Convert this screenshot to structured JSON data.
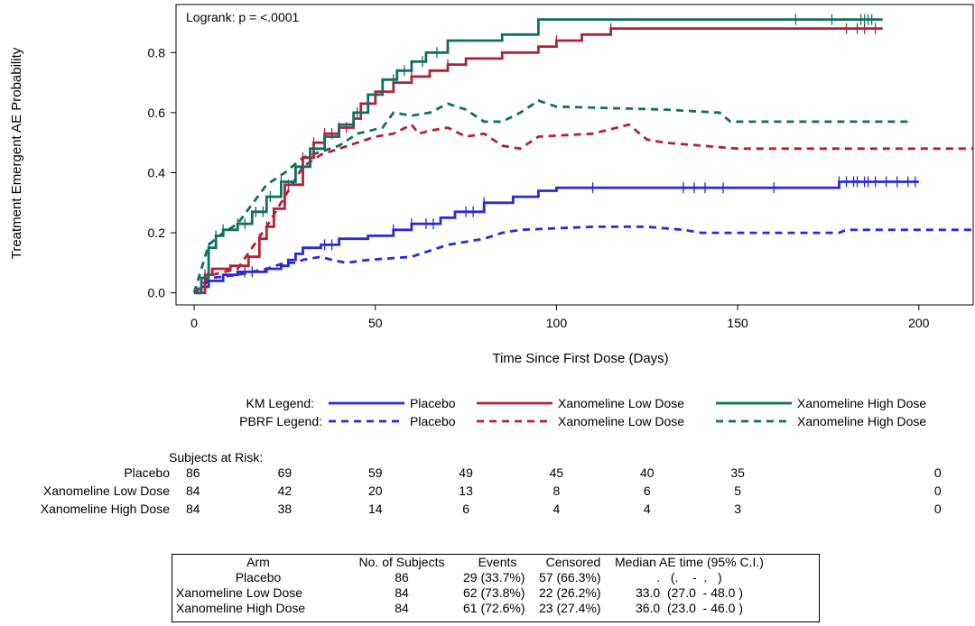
{
  "chart_data": {
    "type": "line",
    "annotation": "Logrank: p = <.0001",
    "xlabel": "Time Since First Dose (Days)",
    "ylabel": "Treatment Emergent AE Probability",
    "xlim": [
      -5,
      215
    ],
    "ylim": [
      -0.04,
      0.96
    ],
    "xticks": [
      0,
      50,
      100,
      150,
      200
    ],
    "yticks": [
      0.0,
      0.2,
      0.4,
      0.6,
      0.8
    ],
    "ytick_labels": [
      "0.0",
      "0.2",
      "0.4",
      "0.6",
      "0.8"
    ],
    "grid": false,
    "colors": {
      "placebo": "#2a2ad8",
      "low": "#b22237",
      "high": "#0f6f63"
    },
    "legend": {
      "km_label": "KM Legend:",
      "pbrf_label": "PBRF Legend:",
      "km_entries": [
        "Placebo",
        "Xanomeline Low Dose",
        "Xanomeline High Dose"
      ],
      "pbrf_entries": [
        "Placebo",
        "Xanomeline Low Dose",
        "Xanomeline High Dose"
      ]
    },
    "km_series": [
      {
        "name": "Placebo",
        "color_key": "placebo",
        "points": [
          [
            0,
            0
          ],
          [
            2,
            0.02
          ],
          [
            4,
            0.04
          ],
          [
            8,
            0.06
          ],
          [
            12,
            0.07
          ],
          [
            20,
            0.08
          ],
          [
            24,
            0.09
          ],
          [
            26,
            0.11
          ],
          [
            28,
            0.13
          ],
          [
            30,
            0.15
          ],
          [
            35,
            0.16
          ],
          [
            40,
            0.18
          ],
          [
            48,
            0.19
          ],
          [
            55,
            0.21
          ],
          [
            60,
            0.23
          ],
          [
            68,
            0.25
          ],
          [
            72,
            0.27
          ],
          [
            80,
            0.3
          ],
          [
            88,
            0.32
          ],
          [
            95,
            0.34
          ],
          [
            100,
            0.35
          ],
          [
            175,
            0.35
          ],
          [
            178,
            0.37
          ],
          [
            200,
            0.37
          ]
        ],
        "censor_x": [
          14,
          16,
          36,
          38,
          55,
          60,
          64,
          66,
          75,
          77,
          80,
          110,
          135,
          138,
          141,
          146,
          160,
          178,
          180,
          182,
          183,
          185,
          186,
          188,
          191,
          194,
          197,
          199
        ]
      },
      {
        "name": "Xanomeline Low Dose",
        "color_key": "low",
        "points": [
          [
            0,
            0
          ],
          [
            3,
            0.06
          ],
          [
            5,
            0.08
          ],
          [
            10,
            0.09
          ],
          [
            15,
            0.12
          ],
          [
            18,
            0.18
          ],
          [
            20,
            0.22
          ],
          [
            22,
            0.28
          ],
          [
            25,
            0.36
          ],
          [
            30,
            0.45
          ],
          [
            33,
            0.5
          ],
          [
            36,
            0.53
          ],
          [
            40,
            0.55
          ],
          [
            44,
            0.58
          ],
          [
            46,
            0.63
          ],
          [
            50,
            0.67
          ],
          [
            55,
            0.7
          ],
          [
            60,
            0.72
          ],
          [
            65,
            0.74
          ],
          [
            70,
            0.76
          ],
          [
            75,
            0.78
          ],
          [
            85,
            0.8
          ],
          [
            95,
            0.82
          ],
          [
            100,
            0.84
          ],
          [
            107,
            0.86
          ],
          [
            115,
            0.88
          ],
          [
            190,
            0.88
          ]
        ],
        "censor_x": [
          3,
          4,
          18,
          20,
          26,
          30,
          33,
          36,
          38,
          40,
          42,
          60,
          70,
          100,
          115,
          180,
          183,
          185,
          188
        ]
      },
      {
        "name": "Xanomeline High Dose",
        "color_key": "high",
        "points": [
          [
            0,
            0
          ],
          [
            2,
            0.05
          ],
          [
            4,
            0.15
          ],
          [
            6,
            0.19
          ],
          [
            8,
            0.21
          ],
          [
            12,
            0.23
          ],
          [
            16,
            0.27
          ],
          [
            20,
            0.32
          ],
          [
            24,
            0.37
          ],
          [
            28,
            0.42
          ],
          [
            32,
            0.48
          ],
          [
            36,
            0.52
          ],
          [
            40,
            0.56
          ],
          [
            44,
            0.6
          ],
          [
            48,
            0.66
          ],
          [
            52,
            0.71
          ],
          [
            56,
            0.74
          ],
          [
            60,
            0.77
          ],
          [
            64,
            0.8
          ],
          [
            70,
            0.84
          ],
          [
            85,
            0.86
          ],
          [
            95,
            0.91
          ],
          [
            190,
            0.91
          ]
        ],
        "censor_x": [
          4,
          6,
          8,
          12,
          14,
          17,
          19,
          21,
          24,
          30,
          33,
          45,
          55,
          58,
          63,
          67,
          166,
          176,
          184,
          185,
          186,
          187
        ]
      }
    ],
    "pbrf_series": [
      {
        "name": "Placebo",
        "color_key": "placebo",
        "points": [
          [
            0,
            0
          ],
          [
            5,
            0.05
          ],
          [
            12,
            0.06
          ],
          [
            20,
            0.08
          ],
          [
            25,
            0.1
          ],
          [
            28,
            0.1
          ],
          [
            30,
            0.11
          ],
          [
            35,
            0.12
          ],
          [
            38,
            0.11
          ],
          [
            42,
            0.1
          ],
          [
            48,
            0.11
          ],
          [
            60,
            0.12
          ],
          [
            70,
            0.16
          ],
          [
            80,
            0.18
          ],
          [
            85,
            0.2
          ],
          [
            90,
            0.21
          ],
          [
            110,
            0.22
          ],
          [
            125,
            0.22
          ],
          [
            135,
            0.21
          ],
          [
            140,
            0.2
          ],
          [
            178,
            0.2
          ],
          [
            180,
            0.21
          ],
          [
            215,
            0.21
          ]
        ]
      },
      {
        "name": "Xanomeline Low Dose",
        "color_key": "low",
        "points": [
          [
            0,
            0
          ],
          [
            5,
            0.06
          ],
          [
            12,
            0.08
          ],
          [
            20,
            0.22
          ],
          [
            25,
            0.32
          ],
          [
            30,
            0.42
          ],
          [
            35,
            0.46
          ],
          [
            40,
            0.48
          ],
          [
            45,
            0.5
          ],
          [
            50,
            0.52
          ],
          [
            55,
            0.53
          ],
          [
            60,
            0.56
          ],
          [
            62,
            0.53
          ],
          [
            65,
            0.54
          ],
          [
            70,
            0.55
          ],
          [
            75,
            0.52
          ],
          [
            80,
            0.53
          ],
          [
            85,
            0.49
          ],
          [
            90,
            0.48
          ],
          [
            95,
            0.52
          ],
          [
            110,
            0.53
          ],
          [
            120,
            0.56
          ],
          [
            125,
            0.51
          ],
          [
            130,
            0.5
          ],
          [
            150,
            0.48
          ],
          [
            215,
            0.48
          ]
        ]
      },
      {
        "name": "Xanomeline High Dose",
        "color_key": "high",
        "points": [
          [
            0,
            0
          ],
          [
            4,
            0.16
          ],
          [
            8,
            0.2
          ],
          [
            12,
            0.23
          ],
          [
            20,
            0.36
          ],
          [
            25,
            0.4
          ],
          [
            30,
            0.45
          ],
          [
            35,
            0.47
          ],
          [
            40,
            0.49
          ],
          [
            45,
            0.53
          ],
          [
            52,
            0.55
          ],
          [
            55,
            0.6
          ],
          [
            60,
            0.59
          ],
          [
            65,
            0.6
          ],
          [
            70,
            0.63
          ],
          [
            75,
            0.61
          ],
          [
            80,
            0.57
          ],
          [
            85,
            0.57
          ],
          [
            90,
            0.6
          ],
          [
            95,
            0.64
          ],
          [
            100,
            0.62
          ],
          [
            130,
            0.61
          ],
          [
            145,
            0.6
          ],
          [
            148,
            0.57
          ],
          [
            197,
            0.57
          ]
        ]
      }
    ],
    "risk_table": {
      "title": "Subjects at Risk:",
      "times": [
        0,
        25,
        50,
        75,
        100,
        125,
        150,
        200
      ],
      "rows": [
        {
          "arm": "Placebo",
          "counts": [
            "86",
            "69",
            "59",
            "49",
            "45",
            "40",
            "35",
            "0"
          ]
        },
        {
          "arm": "Xanomeline Low Dose",
          "counts": [
            "84",
            "42",
            "20",
            "13",
            "8",
            "6",
            "5",
            "0"
          ]
        },
        {
          "arm": "Xanomeline High Dose",
          "counts": [
            "84",
            "38",
            "14",
            "6",
            "4",
            "4",
            "3",
            "0"
          ]
        }
      ]
    },
    "summary_table": {
      "headers": [
        "Arm",
        "No. of Subjects",
        "Events",
        "Censored",
        "Median AE time (95% C.I.)"
      ],
      "rows": [
        [
          "Placebo",
          "86",
          "29 (33.7%)",
          "57 (66.3%)",
          ".   (.    -  .   )"
        ],
        [
          "Xanomeline Low Dose",
          "84",
          "62 (73.8%)",
          "22 (26.2%)",
          "33.0  (27.0  - 48.0 )"
        ],
        [
          "Xanomeline High Dose",
          "84",
          "61 (72.6%)",
          "23 (27.4%)",
          "36.0  (23.0  - 46.0 )"
        ]
      ]
    }
  }
}
